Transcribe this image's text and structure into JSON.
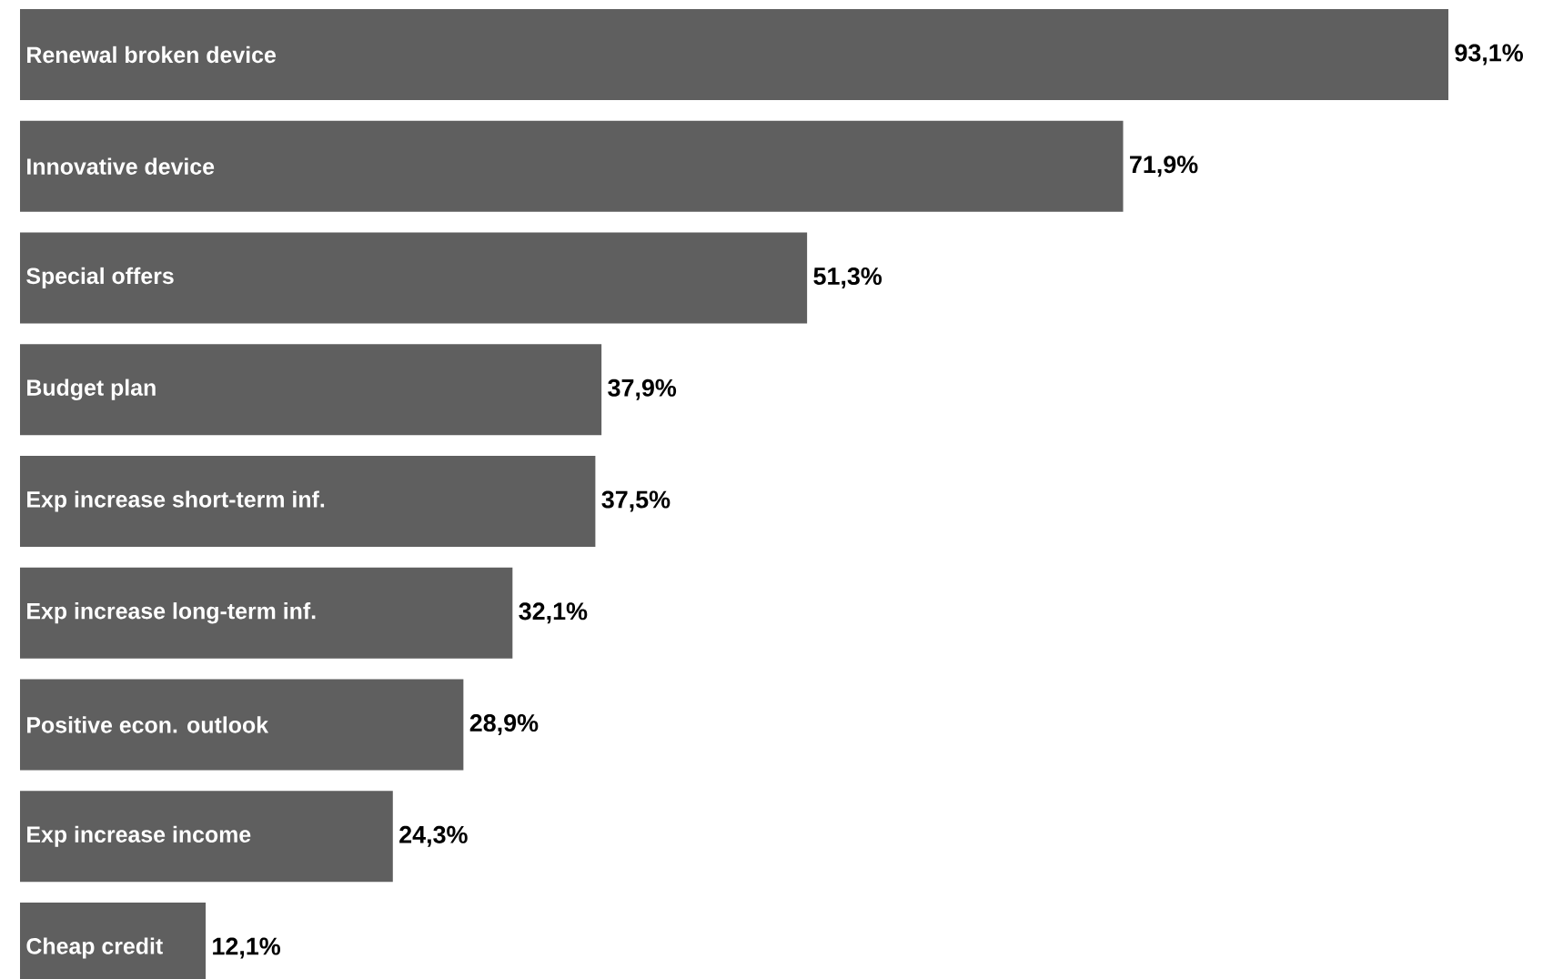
{
  "chart_data": {
    "type": "bar",
    "orientation": "horizontal",
    "categories": [
      "Renewal broken device",
      "Innovative device",
      "Special offers",
      "Budget plan",
      "Exp increase short-term inf.",
      "Exp increase long-term inf.",
      "Positive econ. outlook",
      "Exp increase income",
      "Cheap credit"
    ],
    "values": [
      93.1,
      71.9,
      51.3,
      37.9,
      37.5,
      32.1,
      28.9,
      24.3,
      12.1
    ],
    "value_labels": [
      "93,1%",
      "71,9%",
      "51,3%",
      "37,9%",
      "37,5%",
      "32,1%",
      "28,9%",
      "24,3%",
      "12,1%"
    ],
    "color": "#5f5f5f"
  }
}
